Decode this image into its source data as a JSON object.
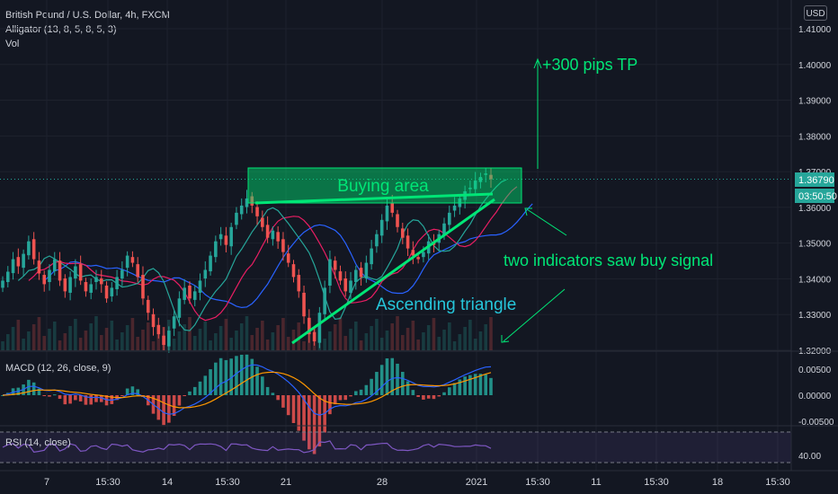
{
  "header": {
    "symbol": "British Pound / U.S. Dollar, 4h, FXCM",
    "alligator": "Alligator (13, 8, 5, 8, 5, 3)",
    "vol": "Vol",
    "currency": "USD"
  },
  "price_axis": {
    "ticks": [
      "1.41000",
      "1.40000",
      "1.39000",
      "1.38000",
      "1.37000",
      "1.36000",
      "1.35000",
      "1.34000",
      "1.33000",
      "1.32000"
    ],
    "tick_values": [
      1.41,
      1.4,
      1.39,
      1.38,
      1.37,
      1.36,
      1.35,
      1.34,
      1.33,
      1.32
    ],
    "last_price": "1.36790",
    "countdown": "03:50:50"
  },
  "time_axis": {
    "labels": [
      "7",
      "15:30",
      "14",
      "15:30",
      "21",
      "28",
      "2021",
      "15:30",
      "11",
      "15:30",
      "18",
      "15:30"
    ]
  },
  "macd": {
    "title": "MACD (12, 26, close, 9)",
    "ticks": [
      "0.00500",
      "0.00000",
      "-0.00500"
    ]
  },
  "rsi": {
    "title": "RSI (14, close)",
    "ticks": [
      "40.00"
    ]
  },
  "annotations": {
    "buying_area": "Buying area",
    "target": "+300 pips TP",
    "signal": "two indicators saw buy signal",
    "triangle": "Ascending triangle"
  },
  "colors": {
    "background": "#131722",
    "up": "#26a69a",
    "down": "#ef5350",
    "annotation_green": "#00e676",
    "triangle_text": "#26c6da",
    "rsi_line": "#7e57c2",
    "macd_line": "#2962ff",
    "signal_line": "#ff9800"
  },
  "chart_data": {
    "type": "candlestick",
    "symbol": "GBPUSD",
    "timeframe": "4h",
    "ylim": [
      1.317,
      1.415
    ],
    "close_series": [
      1.3395,
      1.342,
      1.3455,
      1.3435,
      1.347,
      1.3505,
      1.3455,
      1.3415,
      1.3385,
      1.3425,
      1.3455,
      1.3395,
      1.3365,
      1.3405,
      1.3435,
      1.3395,
      1.3365,
      1.3385,
      1.3405,
      1.3385,
      1.3345,
      1.3375,
      1.3405,
      1.3425,
      1.3465,
      1.3445,
      1.3405,
      1.3345,
      1.3305,
      1.3265,
      1.3245,
      1.3215,
      1.3255,
      1.3295,
      1.3345,
      1.3375,
      1.3345,
      1.3365,
      1.3395,
      1.3425,
      1.3465,
      1.3505,
      1.3525,
      1.3495,
      1.3545,
      1.3585,
      1.3605,
      1.3625,
      1.3605,
      1.3575,
      1.3545,
      1.3515,
      1.3535,
      1.3505,
      1.3475,
      1.3445,
      1.3405,
      1.3365,
      1.3295,
      1.3245,
      1.3225,
      1.3305,
      1.3375,
      1.3455,
      1.3425,
      1.3395,
      1.3365,
      1.3395,
      1.3425,
      1.3405,
      1.3445,
      1.3485,
      1.3525,
      1.3565,
      1.3605,
      1.3585,
      1.3545,
      1.3515,
      1.3485,
      1.3465,
      1.3455,
      1.3475,
      1.3505,
      1.3495,
      1.3525,
      1.3555,
      1.3585,
      1.3605,
      1.3625,
      1.3645,
      1.3655,
      1.3675,
      1.3685,
      1.3695,
      1.3679
    ],
    "overlays": [
      "Alligator jaw",
      "Alligator teeth",
      "Alligator lips"
    ]
  }
}
